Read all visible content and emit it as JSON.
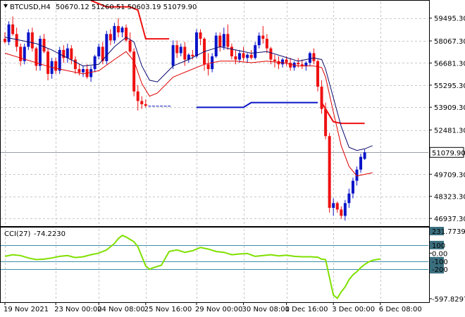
{
  "main_header": {
    "symbol": "BTCUSD,H4",
    "ohlc": "50670.12 51260.51 50603.19 51079.90"
  },
  "sub_header": {
    "indicator": "CCI(27)",
    "value": "-74.2230"
  },
  "colors": {
    "bull": "#0a14c8",
    "bear": "#ee1111",
    "ma_fast": "#0a0a6e",
    "ma_slow": "#e00000",
    "cci": "#7fe000",
    "level_line": "#3d8fa8",
    "grid": "#c8c8c8",
    "axis": "#000000"
  },
  "chart_data": [
    {
      "type": "candlestick",
      "name": "price",
      "symbol": "BTCUSD",
      "timeframe": "H4",
      "last_price": 51079.9,
      "current_price_label": "51079.90",
      "ylim": [
        46500,
        60500
      ],
      "y_ticks": [
        {
          "value": 59495.3,
          "label": "59495.30"
        },
        {
          "value": 58067.3,
          "label": "58067.30"
        },
        {
          "value": 56681.3,
          "label": "56681.30"
        },
        {
          "value": 55295.3,
          "label": "55295.30"
        },
        {
          "value": 53909.3,
          "label": "53909.30"
        },
        {
          "value": 52481.3,
          "label": "52481.30"
        },
        {
          "value": 49709.3,
          "label": "49709.30"
        },
        {
          "value": 48323.3,
          "label": "48323.30"
        },
        {
          "value": 46937.3,
          "label": "46937.30"
        }
      ],
      "x_ticks": [
        {
          "index": 0,
          "label": "19 Nov 2021"
        },
        {
          "index": 13,
          "label": "23 Nov 00:00"
        },
        {
          "index": 24,
          "label": "24 Nov 08:00"
        },
        {
          "index": 36,
          "label": "25 Nov 16:00"
        },
        {
          "index": 49,
          "label": "29 Nov 00:00"
        },
        {
          "index": 61,
          "label": "30 Nov 08:00"
        },
        {
          "index": 72,
          "label": "1 Dec 16:00"
        },
        {
          "index": 84,
          "label": "3 Dec 00:00"
        },
        {
          "index": 96,
          "label": "6 Dec 08:00"
        }
      ],
      "candles": [
        [
          58200,
          58600,
          57900,
          58000
        ],
        [
          58000,
          59300,
          57800,
          59100
        ],
        [
          59100,
          59600,
          58400,
          58500
        ],
        [
          58500,
          58900,
          57400,
          57700
        ],
        [
          57700,
          57900,
          56500,
          56800
        ],
        [
          56800,
          57900,
          56600,
          57700
        ],
        [
          57700,
          58800,
          57500,
          58600
        ],
        [
          58600,
          58900,
          57400,
          57600
        ],
        [
          57600,
          57700,
          56200,
          56500
        ],
        [
          56500,
          58400,
          56200,
          58200
        ],
        [
          58200,
          58500,
          57300,
          57400
        ],
        [
          57400,
          57600,
          55600,
          56000
        ],
        [
          56000,
          57000,
          55700,
          56800
        ],
        [
          56800,
          57000,
          56000,
          56200
        ],
        [
          56200,
          57700,
          56000,
          57500
        ],
        [
          57500,
          57800,
          56700,
          57000
        ],
        [
          57000,
          57900,
          56700,
          57600
        ],
        [
          57600,
          57800,
          56600,
          56900
        ],
        [
          56900,
          57100,
          56000,
          56300
        ],
        [
          56300,
          56600,
          55900,
          56100
        ],
        [
          56100,
          56500,
          55800,
          56300
        ],
        [
          56300,
          56600,
          55700,
          55800
        ],
        [
          55800,
          56500,
          55500,
          56300
        ],
        [
          56300,
          57200,
          56100,
          57100
        ],
        [
          57100,
          57900,
          56900,
          57700
        ],
        [
          57700,
          58000,
          56600,
          56800
        ],
        [
          56800,
          58700,
          56600,
          58500
        ],
        [
          58500,
          58800,
          57800,
          58100
        ],
        [
          58100,
          59200,
          57900,
          59000
        ],
        [
          59000,
          59500,
          58300,
          58600
        ],
        [
          58600,
          59000,
          58300,
          58900
        ],
        [
          58900,
          59100,
          58000,
          58100
        ],
        [
          58100,
          58600,
          57300,
          57400
        ],
        [
          57400,
          57600,
          54600,
          54900
        ],
        [
          54900,
          55300,
          53700,
          54300
        ],
        [
          54300,
          54600,
          53800,
          54100
        ],
        [
          54100,
          54400,
          53900,
          54000
        ],
        [
          54000,
          54000,
          54000,
          54000
        ],
        [
          54000,
          54000,
          54000,
          54000
        ],
        [
          54000,
          54000,
          54000,
          54000
        ],
        [
          54000,
          54000,
          54000,
          54000
        ],
        [
          54000,
          54000,
          54000,
          54000
        ],
        [
          54000,
          54000,
          54000,
          54000
        ],
        [
          56500,
          58100,
          56300,
          57800
        ],
        [
          57800,
          58100,
          57000,
          57300
        ],
        [
          57300,
          57900,
          57100,
          57700
        ],
        [
          57700,
          58000,
          56500,
          56900
        ],
        [
          56900,
          57300,
          56700,
          57200
        ],
        [
          57200,
          57500,
          56900,
          57100
        ],
        [
          57100,
          58800,
          57000,
          58600
        ],
        [
          58600,
          58800,
          57800,
          58200
        ],
        [
          58200,
          58300,
          56200,
          56600
        ],
        [
          56600,
          57300,
          55900,
          56300
        ],
        [
          56300,
          57300,
          56100,
          57100
        ],
        [
          57100,
          58600,
          57000,
          58400
        ],
        [
          58400,
          58600,
          57400,
          57700
        ],
        [
          57700,
          58900,
          57500,
          58500
        ],
        [
          58500,
          59100,
          57500,
          57700
        ],
        [
          57700,
          57900,
          56900,
          57100
        ],
        [
          57100,
          57500,
          56600,
          56900
        ],
        [
          56900,
          57500,
          56700,
          57300
        ],
        [
          57300,
          57700,
          56800,
          57000
        ],
        [
          57000,
          57300,
          56700,
          57200
        ],
        [
          57200,
          57500,
          56900,
          57000
        ],
        [
          57000,
          58000,
          56900,
          57800
        ],
        [
          57800,
          58600,
          57600,
          58400
        ],
        [
          58400,
          59000,
          57900,
          58200
        ],
        [
          58200,
          58500,
          57300,
          57600
        ],
        [
          57600,
          57700,
          56600,
          56900
        ],
        [
          56900,
          57200,
          56400,
          56800
        ],
        [
          56800,
          57100,
          56300,
          56600
        ],
        [
          56600,
          57000,
          56400,
          56900
        ],
        [
          56900,
          57100,
          56500,
          56700
        ],
        [
          56700,
          57000,
          56200,
          56400
        ],
        [
          56400,
          56800,
          56200,
          56700
        ],
        [
          56700,
          57000,
          56400,
          56600
        ],
        [
          56600,
          56900,
          56300,
          56500
        ],
        [
          56500,
          56800,
          56200,
          56700
        ],
        [
          56700,
          57400,
          56500,
          57300
        ],
        [
          57300,
          57600,
          56600,
          56800
        ],
        [
          56800,
          56900,
          54900,
          55200
        ],
        [
          55200,
          55600,
          53500,
          53800
        ],
        [
          53800,
          54200,
          51900,
          52100
        ],
        [
          52100,
          52300,
          47300,
          47600
        ],
        [
          47600,
          48200,
          47100,
          47900
        ],
        [
          47900,
          48000,
          47300,
          47500
        ],
        [
          47500,
          47700,
          46900,
          47100
        ],
        [
          47100,
          48100,
          46800,
          47900
        ],
        [
          47900,
          48800,
          47600,
          48500
        ],
        [
          48500,
          49500,
          48200,
          49300
        ],
        [
          49300,
          50200,
          49000,
          50000
        ],
        [
          50000,
          51000,
          49800,
          50800
        ],
        [
          50670.12,
          51260.51,
          50603.19,
          51079.9
        ]
      ],
      "ma_fast": [
        [
          0,
          58300
        ],
        [
          4,
          58100
        ],
        [
          8,
          57900
        ],
        [
          12,
          57500
        ],
        [
          16,
          57000
        ],
        [
          20,
          56500
        ],
        [
          24,
          56600
        ],
        [
          28,
          57700
        ],
        [
          31,
          58300
        ],
        [
          33,
          58000
        ],
        [
          35,
          56500
        ],
        [
          37,
          55600
        ],
        [
          39,
          55500
        ],
        [
          43,
          56500
        ],
        [
          47,
          56900
        ],
        [
          51,
          57400
        ],
        [
          55,
          57700
        ],
        [
          59,
          57500
        ],
        [
          63,
          57300
        ],
        [
          67,
          57400
        ],
        [
          71,
          57100
        ],
        [
          75,
          56800
        ],
        [
          79,
          57000
        ],
        [
          81,
          56900
        ],
        [
          82,
          56300
        ],
        [
          84,
          54500
        ],
        [
          86,
          52700
        ],
        [
          88,
          51400
        ],
        [
          90,
          51200
        ],
        [
          92,
          51300
        ],
        [
          94,
          51500
        ]
      ],
      "ma_slow": [
        [
          0,
          57300
        ],
        [
          4,
          57000
        ],
        [
          8,
          56700
        ],
        [
          12,
          56400
        ],
        [
          16,
          56200
        ],
        [
          20,
          56000
        ],
        [
          24,
          56200
        ],
        [
          28,
          56900
        ],
        [
          31,
          57400
        ],
        [
          33,
          56800
        ],
        [
          35,
          55400
        ],
        [
          37,
          54600
        ],
        [
          39,
          54800
        ],
        [
          43,
          55800
        ],
        [
          47,
          56200
        ],
        [
          51,
          56600
        ],
        [
          55,
          56800
        ],
        [
          59,
          56800
        ],
        [
          63,
          56700
        ],
        [
          67,
          56800
        ],
        [
          71,
          56700
        ],
        [
          75,
          56500
        ],
        [
          79,
          56500
        ],
        [
          81,
          56400
        ],
        [
          82,
          55800
        ],
        [
          84,
          53600
        ],
        [
          86,
          51500
        ],
        [
          88,
          50200
        ],
        [
          90,
          49600
        ],
        [
          92,
          49700
        ],
        [
          94,
          49800
        ]
      ],
      "levels": [
        {
          "points": [
            [
              22,
              60600
            ],
            [
              24,
              60400
            ],
            [
              26,
              60200
            ],
            [
              32,
              60200
            ],
            [
              34,
              60000
            ],
            [
              36,
              58200
            ],
            [
              42,
              58200
            ]
          ],
          "color": "#ee1111"
        },
        {
          "points": [
            [
              49,
              53900
            ],
            [
              61,
              53900
            ],
            [
              63,
              54200
            ],
            [
              67,
              54200
            ],
            [
              80,
              54200
            ]
          ],
          "color": "#0a14c8"
        },
        {
          "points": [
            [
              81,
              54200
            ],
            [
              84,
              53000
            ],
            [
              86,
              52900
            ],
            [
              89,
              52900
            ],
            [
              92,
              52900
            ]
          ],
          "color": "#ee1111"
        }
      ]
    },
    {
      "type": "line",
      "name": "CCI(27)",
      "last_value": -74.223,
      "ylim": [
        -600,
        300
      ],
      "y_ticks": [
        {
          "value": 231.7739,
          "label": "231.7739"
        },
        {
          "value": 100,
          "label": "100"
        },
        {
          "value": 0,
          "label": "0.00"
        },
        {
          "value": -100,
          "label": "-100"
        },
        {
          "value": -200,
          "label": "-200"
        },
        {
          "value": -597.8297,
          "label": "-597.8297"
        }
      ],
      "levels": [
        100,
        -100,
        -200
      ],
      "values": [
        [
          0,
          -40
        ],
        [
          2,
          -20
        ],
        [
          4,
          -30
        ],
        [
          6,
          -60
        ],
        [
          8,
          -80
        ],
        [
          10,
          -75
        ],
        [
          12,
          -60
        ],
        [
          14,
          -40
        ],
        [
          16,
          -30
        ],
        [
          18,
          -55
        ],
        [
          20,
          -45
        ],
        [
          22,
          -20
        ],
        [
          24,
          0
        ],
        [
          26,
          40
        ],
        [
          28,
          120
        ],
        [
          29,
          180
        ],
        [
          30,
          220
        ],
        [
          31,
          200
        ],
        [
          33,
          140
        ],
        [
          34,
          80
        ],
        [
          35,
          -40
        ],
        [
          36,
          -160
        ],
        [
          37,
          -200
        ],
        [
          38,
          -180
        ],
        [
          40,
          -150
        ],
        [
          42,
          20
        ],
        [
          44,
          40
        ],
        [
          46,
          10
        ],
        [
          48,
          30
        ],
        [
          50,
          70
        ],
        [
          52,
          50
        ],
        [
          54,
          20
        ],
        [
          56,
          10
        ],
        [
          58,
          -20
        ],
        [
          60,
          -10
        ],
        [
          62,
          -5
        ],
        [
          64,
          -40
        ],
        [
          66,
          -30
        ],
        [
          68,
          -20
        ],
        [
          70,
          -35
        ],
        [
          72,
          -25
        ],
        [
          74,
          -40
        ],
        [
          76,
          -45
        ],
        [
          78,
          -45
        ],
        [
          80,
          -50
        ],
        [
          81,
          -75
        ],
        [
          82,
          -80
        ],
        [
          83,
          -300
        ],
        [
          84,
          -520
        ],
        [
          85,
          -560
        ],
        [
          86,
          -480
        ],
        [
          87,
          -420
        ],
        [
          88,
          -330
        ],
        [
          89,
          -270
        ],
        [
          90,
          -230
        ],
        [
          91,
          -180
        ],
        [
          92,
          -140
        ],
        [
          93,
          -110
        ],
        [
          94,
          -90
        ],
        [
          95,
          -80
        ],
        [
          96,
          -74
        ]
      ]
    }
  ]
}
